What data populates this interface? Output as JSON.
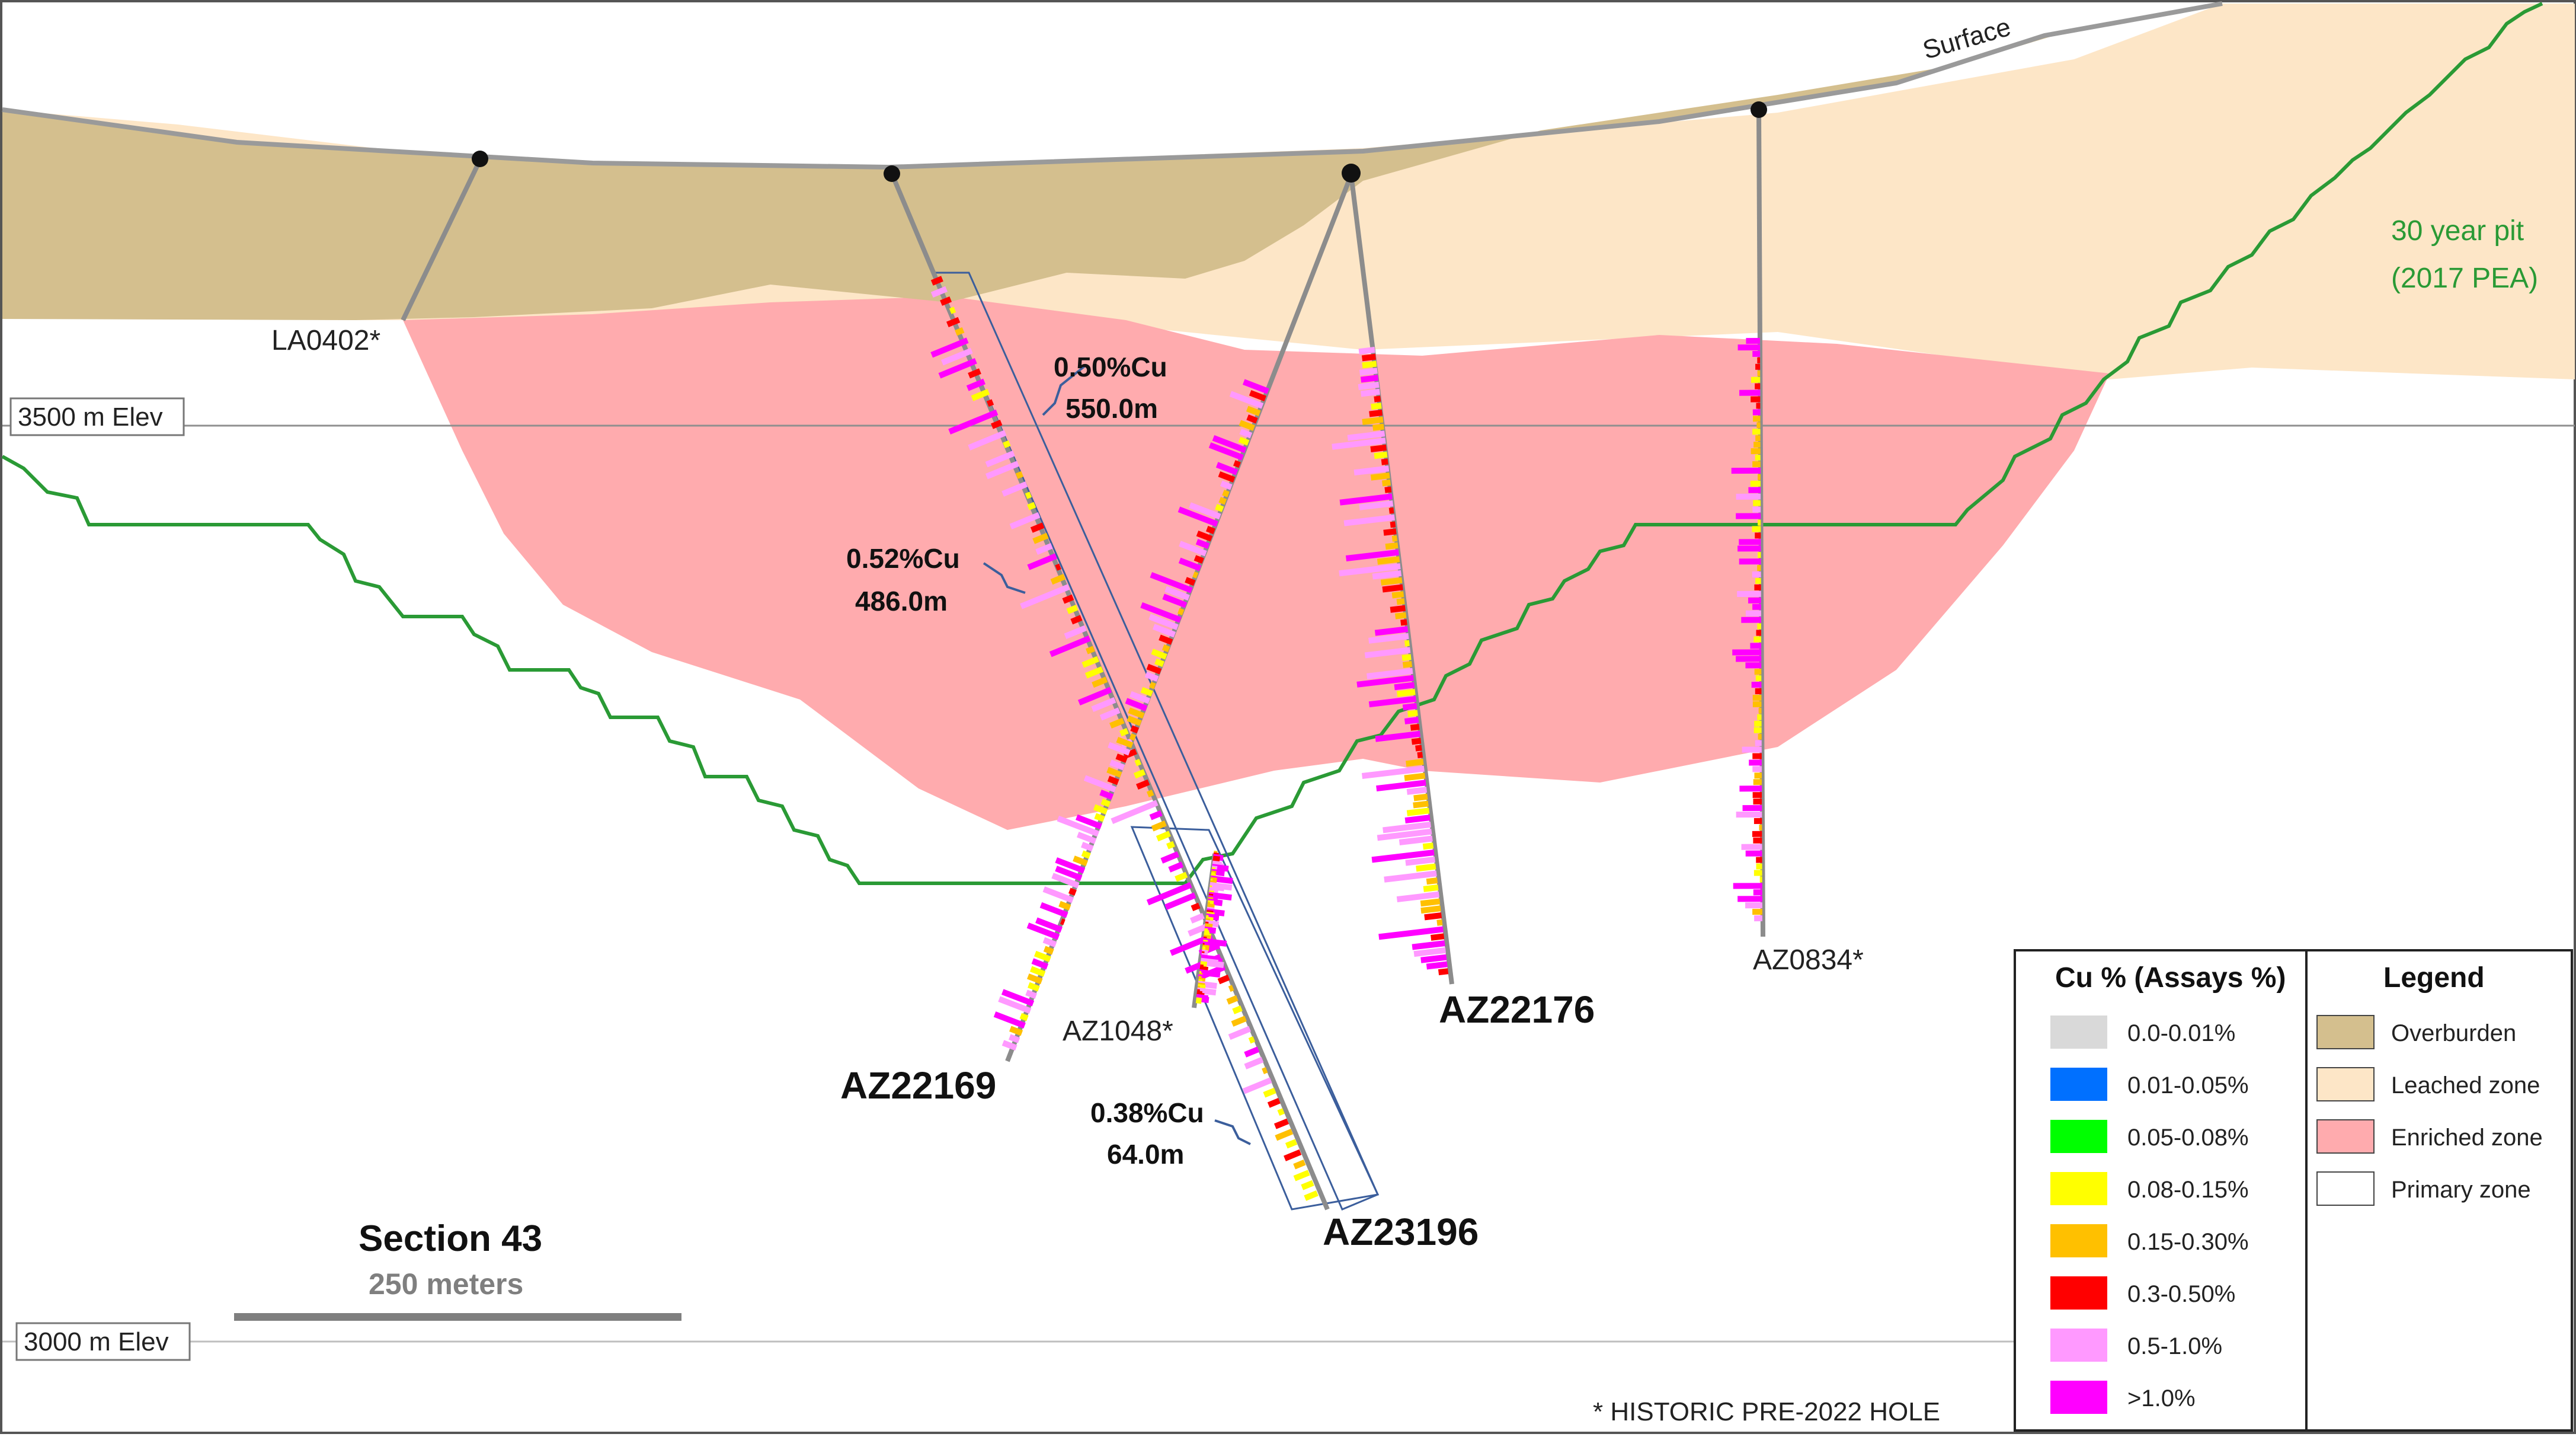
{
  "labels": {
    "surface": "Surface",
    "pit_line1": "30 year pit",
    "pit_line2": "(2017 PEA)",
    "elev_3500": "3500 m Elev",
    "elev_3000": "3000 m Elev",
    "section": "Section 43",
    "scale": "250 meters",
    "historic_note": "* HISTORIC PRE-2022 HOLE"
  },
  "holes": [
    {
      "id": "LA0402",
      "label": "LA0402*",
      "historic": true
    },
    {
      "id": "AZ22169",
      "label": "AZ22169",
      "historic": false
    },
    {
      "id": "AZ23196",
      "label": "AZ23196",
      "historic": false
    },
    {
      "id": "AZ22176",
      "label": "AZ22176",
      "historic": false
    },
    {
      "id": "AZ0834",
      "label": "AZ0834*",
      "historic": true
    },
    {
      "id": "AZ1048",
      "label": "AZ1048*",
      "historic": true
    }
  ],
  "intercepts": [
    {
      "grade": "0.50%Cu",
      "length": "550.0m"
    },
    {
      "grade": "0.52%Cu",
      "length": "486.0m"
    },
    {
      "grade": "0.38%Cu",
      "length": "64.0m"
    }
  ],
  "assay_legend": {
    "title": "Cu % (Assays %)",
    "items": [
      {
        "label": "0.0-0.01%",
        "color": "#d9d9d9"
      },
      {
        "label": "0.01-0.05%",
        "color": "#0070ff"
      },
      {
        "label": "0.05-0.08%",
        "color": "#00ff00"
      },
      {
        "label": "0.08-0.15%",
        "color": "#ffff00"
      },
      {
        "label": "0.15-0.30%",
        "color": "#ffc000"
      },
      {
        "label": "0.3-0.50%",
        "color": "#ff0000"
      },
      {
        "label": "0.5-1.0%",
        "color": "#ff99ff"
      },
      {
        "label": ">1.0%",
        "color": "#ff00ff"
      }
    ]
  },
  "zone_legend": {
    "title": "Legend",
    "items": [
      {
        "label": "Overburden",
        "color": "#d4bf8e"
      },
      {
        "label": "Leached zone",
        "color": "#fde6c7"
      },
      {
        "label": "Enriched zone",
        "color": "#ffabae"
      },
      {
        "label": "Primary zone",
        "color": "#ffffff"
      }
    ]
  },
  "colors": {
    "overburden": "#d4bf8e",
    "leached": "#fde6c7",
    "enriched": "#ffabae",
    "pit": "#2a9a35",
    "hole": "#8c8c8c",
    "envelope": "#3b5e9c"
  }
}
